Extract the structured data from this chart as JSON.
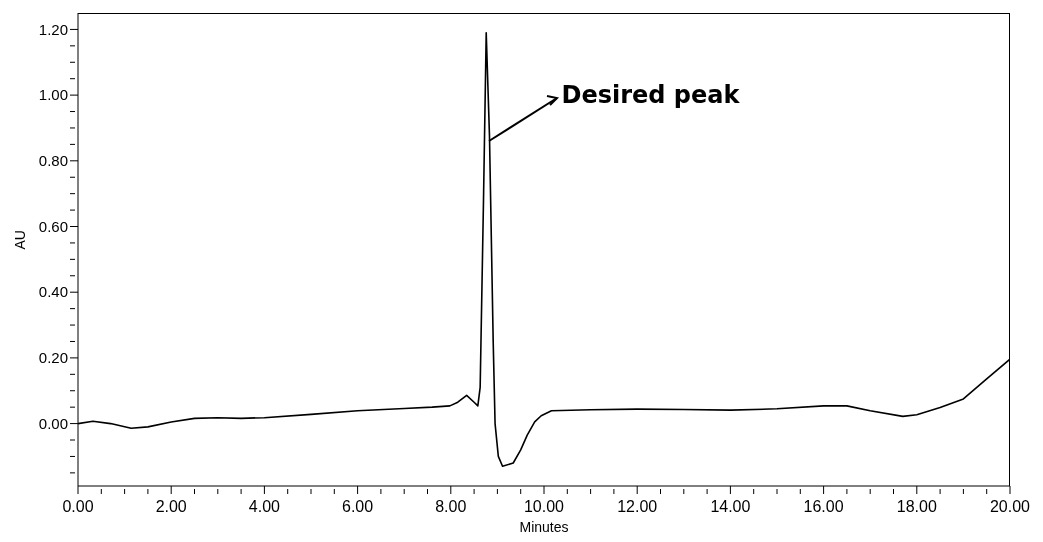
{
  "chart_data": {
    "type": "line",
    "xlabel": "Minutes",
    "ylabel": "AU",
    "x": [
      0,
      0.32,
      0.7,
      1.14,
      1.5,
      2.0,
      2.5,
      3.0,
      3.5,
      4.0,
      5.0,
      6.0,
      7.0,
      7.6,
      7.98,
      8.15,
      8.34,
      8.5,
      8.58,
      8.63,
      8.7,
      8.76,
      8.83,
      8.91,
      8.95,
      9.02,
      9.11,
      9.34,
      9.5,
      9.64,
      9.8,
      9.94,
      10.16,
      11.0,
      12.0,
      13.0,
      14.0,
      15.0,
      16.0,
      16.5,
      17.0,
      17.7,
      18.0,
      18.5,
      19.0,
      19.5,
      20.0
    ],
    "series": [
      {
        "color": "#000000",
        "values": [
          0.0,
          0.007,
          0.0,
          -0.014,
          -0.01,
          0.005,
          0.016,
          0.018,
          0.016,
          0.018,
          0.028,
          0.039,
          0.046,
          0.05,
          0.054,
          0.065,
          0.086,
          0.065,
          0.054,
          0.11,
          0.666,
          1.19,
          0.876,
          0.248,
          0.0,
          -0.1,
          -0.13,
          -0.12,
          -0.08,
          -0.035,
          0.005,
          0.024,
          0.039,
          0.042,
          0.044,
          0.043,
          0.041,
          0.045,
          0.054,
          0.054,
          0.039,
          0.022,
          0.027,
          0.049,
          0.075,
          0.136,
          0.196
        ]
      }
    ],
    "xlim": [
      0,
      20
    ],
    "xticks": [
      {
        "value": 0,
        "label": "0.00"
      },
      {
        "value": 0.5,
        "label": null
      },
      {
        "value": 1,
        "label": null
      },
      {
        "value": 1.5,
        "label": null
      },
      {
        "value": 2,
        "label": "2.00"
      },
      {
        "value": 2.5,
        "label": null
      },
      {
        "value": 3,
        "label": null
      },
      {
        "value": 3.5,
        "label": null
      },
      {
        "value": 4,
        "label": "4.00"
      },
      {
        "value": 4.5,
        "label": null
      },
      {
        "value": 5,
        "label": null
      },
      {
        "value": 5.5,
        "label": null
      },
      {
        "value": 6,
        "label": "6.00"
      },
      {
        "value": 6.5,
        "label": null
      },
      {
        "value": 7,
        "label": null
      },
      {
        "value": 7.5,
        "label": null
      },
      {
        "value": 8,
        "label": "8.00"
      },
      {
        "value": 8.5,
        "label": null
      },
      {
        "value": 9,
        "label": null
      },
      {
        "value": 9.5,
        "label": null
      },
      {
        "value": 10,
        "label": "10.00"
      },
      {
        "value": 10.5,
        "label": null
      },
      {
        "value": 11,
        "label": null
      },
      {
        "value": 11.5,
        "label": null
      },
      {
        "value": 12,
        "label": "12.00"
      },
      {
        "value": 12.5,
        "label": null
      },
      {
        "value": 13,
        "label": null
      },
      {
        "value": 13.5,
        "label": null
      },
      {
        "value": 14,
        "label": "14.00"
      },
      {
        "value": 14.5,
        "label": null
      },
      {
        "value": 15,
        "label": null
      },
      {
        "value": 15.5,
        "label": null
      },
      {
        "value": 16,
        "label": "16.00"
      },
      {
        "value": 16.5,
        "label": null
      },
      {
        "value": 17,
        "label": null
      },
      {
        "value": 17.5,
        "label": null
      },
      {
        "value": 18,
        "label": "18.00"
      },
      {
        "value": 18.5,
        "label": null
      },
      {
        "value": 19,
        "label": null
      },
      {
        "value": 19.5,
        "label": null
      },
      {
        "value": 20,
        "label": "20.00"
      }
    ],
    "ylim": [
      -0.19,
      1.25
    ],
    "yticks": [
      {
        "value": -0.15,
        "label": null
      },
      {
        "value": -0.1,
        "label": null
      },
      {
        "value": -0.05,
        "label": null
      },
      {
        "value": 0,
        "label": "0.00"
      },
      {
        "value": 0.05,
        "label": null
      },
      {
        "value": 0.1,
        "label": null
      },
      {
        "value": 0.15,
        "label": null
      },
      {
        "value": 0.2,
        "label": "0.20"
      },
      {
        "value": 0.25,
        "label": null
      },
      {
        "value": 0.3,
        "label": null
      },
      {
        "value": 0.35,
        "label": null
      },
      {
        "value": 0.4,
        "label": "0.40"
      },
      {
        "value": 0.45,
        "label": null
      },
      {
        "value": 0.5,
        "label": null
      },
      {
        "value": 0.55,
        "label": null
      },
      {
        "value": 0.6,
        "label": "0.60"
      },
      {
        "value": 0.65,
        "label": null
      },
      {
        "value": 0.7,
        "label": null
      },
      {
        "value": 0.75,
        "label": null
      },
      {
        "value": 0.8,
        "label": "0.80"
      },
      {
        "value": 0.85,
        "label": null
      },
      {
        "value": 0.9,
        "label": null
      },
      {
        "value": 0.95,
        "label": null
      },
      {
        "value": 1.0,
        "label": "1.00"
      },
      {
        "value": 1.05,
        "label": null
      },
      {
        "value": 1.1,
        "label": null
      },
      {
        "value": 1.15,
        "label": null
      },
      {
        "value": 1.2,
        "label": "1.20"
      }
    ],
    "annotations": [
      {
        "text": "Desired peak",
        "x": 8.83,
        "y": 0.86
      }
    ],
    "grid": false,
    "legend": false,
    "marker": "none",
    "line_style": "solid"
  }
}
